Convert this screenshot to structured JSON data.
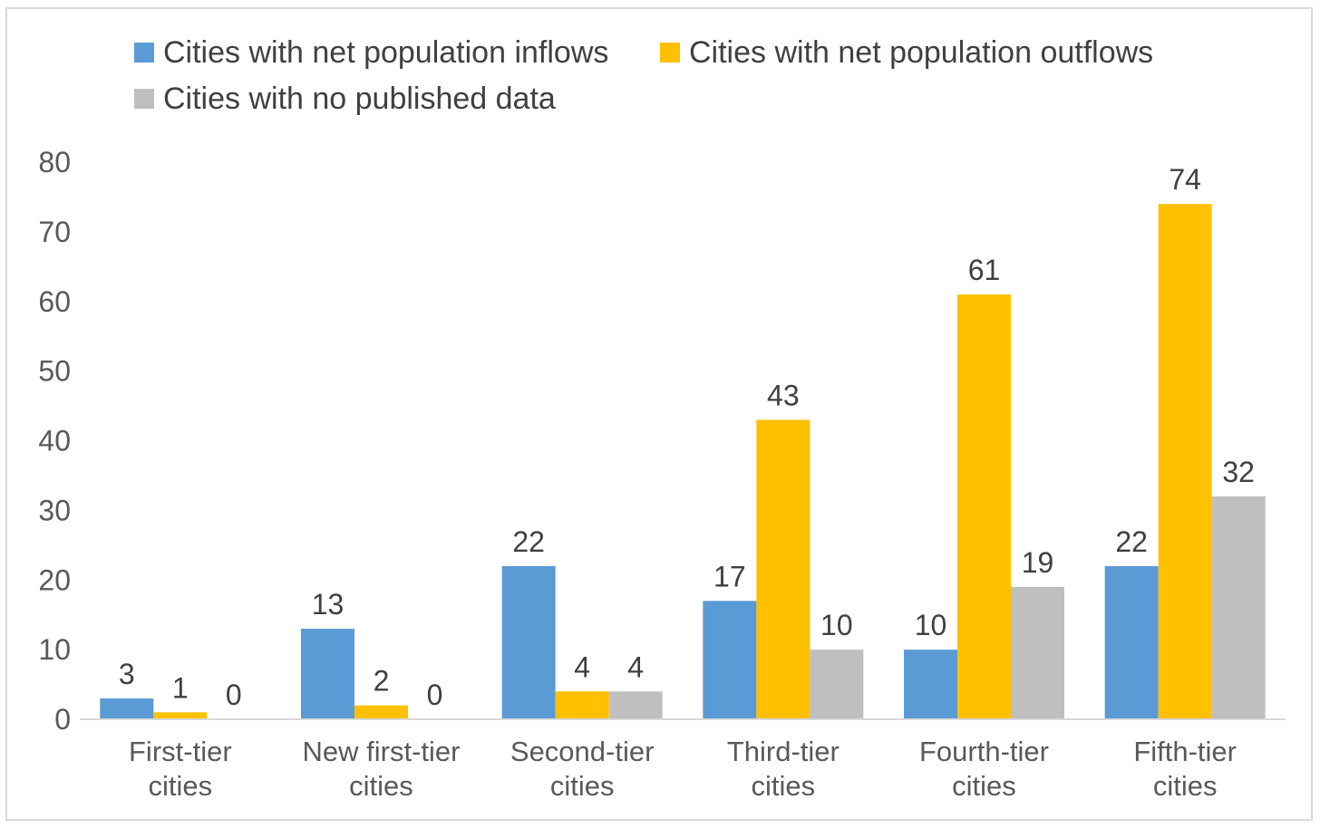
{
  "chart_data": {
    "type": "bar",
    "title": "",
    "xlabel": "",
    "ylabel": "",
    "ylim": [
      0,
      80
    ],
    "yticks": [
      0,
      10,
      20,
      30,
      40,
      50,
      60,
      70,
      80
    ],
    "grid": false,
    "legend_position": "top",
    "categories": [
      [
        "First-tier",
        "cities"
      ],
      [
        "New first-tier",
        "cities"
      ],
      [
        "Second-tier",
        "cities"
      ],
      [
        "Third-tier",
        "cities"
      ],
      [
        "Fourth-tier",
        "cities"
      ],
      [
        "Fifth-tier",
        "cities"
      ]
    ],
    "series": [
      {
        "name": "Cities with net population inflows",
        "color": "#5b9bd5",
        "values": [
          3,
          13,
          22,
          17,
          10,
          22
        ]
      },
      {
        "name": "Cities with net population outflows",
        "color": "#ffc000",
        "values": [
          1,
          2,
          4,
          43,
          61,
          74
        ]
      },
      {
        "name": "Cities with no published data",
        "color": "#bfbfbf",
        "values": [
          0,
          0,
          4,
          10,
          19,
          32
        ]
      }
    ]
  }
}
